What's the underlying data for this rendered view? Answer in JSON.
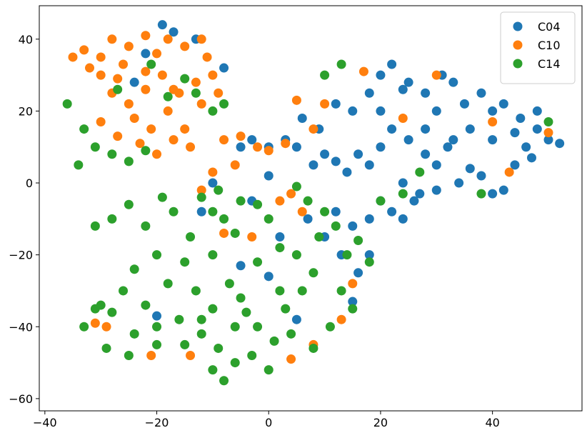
{
  "chart_data": {
    "type": "scatter",
    "xlim": [
      -41,
      56
    ],
    "ylim": [
      -63.4,
      49.3
    ],
    "xticks": [
      {
        "value": -40,
        "label": "−40"
      },
      {
        "value": -20,
        "label": "−20"
      },
      0,
      20,
      40
    ],
    "yticks": [
      {
        "value": -60,
        "label": "−60"
      },
      {
        "value": -40,
        "label": "−40"
      },
      {
        "value": -20,
        "label": "−20"
      },
      0,
      20,
      40
    ],
    "legend": "upper right",
    "series": [
      {
        "name": "C04",
        "color": "#1f77b4",
        "x": [
          20,
          22,
          25,
          18,
          15,
          12,
          28,
          30,
          33,
          35,
          38,
          40,
          42,
          45,
          48,
          50,
          52,
          46,
          44,
          40,
          36,
          32,
          30,
          28,
          25,
          22,
          20,
          18,
          16,
          14,
          12,
          10,
          8,
          5,
          3,
          0,
          -3,
          -5,
          6,
          9,
          24,
          27,
          30,
          34,
          38,
          42,
          40,
          36,
          44,
          47,
          20,
          18,
          15,
          12,
          10,
          13,
          16,
          15,
          18,
          22,
          24,
          26,
          -19,
          -17,
          -13,
          -8,
          -24,
          -22,
          -20,
          -5,
          0,
          5,
          2,
          -3,
          -10,
          -12,
          0,
          31,
          24,
          33,
          20,
          48,
          28,
          7
        ],
        "values": [
          30,
          33,
          28,
          25,
          20,
          22,
          25,
          20,
          28,
          22,
          25,
          20,
          22,
          18,
          15,
          12,
          11,
          10,
          14,
          12,
          15,
          10,
          5,
          8,
          12,
          15,
          10,
          5,
          8,
          3,
          6,
          8,
          5,
          10,
          12,
          10,
          12,
          10,
          18,
          15,
          0,
          -3,
          -2,
          0,
          2,
          -2,
          -3,
          4,
          5,
          7,
          -5,
          -10,
          -12,
          -8,
          -15,
          -20,
          -25,
          -33,
          -20,
          -8,
          -10,
          -5,
          44,
          42,
          40,
          32,
          28,
          36,
          -37,
          -23,
          -26,
          -38,
          -15,
          -5,
          0,
          -8,
          2,
          30,
          26,
          12,
          20,
          20,
          15,
          -10
        ]
      },
      {
        "name": "C10",
        "color": "#ff7f0e",
        "x": [
          -33,
          -30,
          -28,
          -25,
          -22,
          -20,
          -18,
          -15,
          -12,
          -10,
          -13,
          -16,
          -19,
          -22,
          -25,
          -28,
          -30,
          -32,
          -26,
          -24,
          -21,
          -18,
          -15,
          -12,
          -9,
          -14,
          -17,
          -20,
          -23,
          -27,
          -30,
          -8,
          -5,
          -2,
          0,
          3,
          -6,
          -10,
          -12,
          4,
          2,
          6,
          8,
          10,
          5,
          17,
          30,
          40,
          50,
          43,
          24,
          -31,
          -29,
          -21,
          -14,
          -8,
          -3,
          4,
          8,
          13,
          15,
          -17,
          -22,
          -27,
          -11,
          -35
        ],
        "values": [
          37,
          35,
          40,
          38,
          41,
          36,
          40,
          38,
          40,
          30,
          28,
          25,
          30,
          26,
          22,
          25,
          30,
          32,
          33,
          18,
          15,
          20,
          15,
          22,
          25,
          10,
          12,
          8,
          11,
          13,
          17,
          12,
          13,
          10,
          9,
          11,
          5,
          3,
          -2,
          -3,
          -5,
          -8,
          15,
          22,
          23,
          31,
          30,
          17,
          14,
          3,
          18,
          -39,
          -40,
          -48,
          -48,
          -14,
          -15,
          -49,
          -45,
          -38,
          -28,
          26,
          31,
          29,
          35,
          35
        ]
      },
      {
        "name": "C14",
        "color": "#2ca02c",
        "x": [
          -36,
          -33,
          -31,
          -34,
          -28,
          -25,
          -22,
          -27,
          -21,
          -18,
          -15,
          -13,
          -10,
          -8,
          -19,
          -25,
          -28,
          -31,
          -22,
          -17,
          -14,
          -12,
          -8,
          -6,
          -10,
          -15,
          -20,
          -24,
          -26,
          -22,
          -20,
          -24,
          -28,
          -31,
          -33,
          -29,
          -25,
          -20,
          -16,
          -13,
          -10,
          -7,
          -5,
          -12,
          -9,
          -6,
          -3,
          0,
          -8,
          -10,
          -15,
          -2,
          1,
          4,
          3,
          6,
          8,
          5,
          2,
          9,
          12,
          10,
          14,
          16,
          18,
          15,
          11,
          8,
          2,
          -2,
          0,
          -5,
          -10,
          10,
          13,
          20,
          24,
          27,
          38,
          50,
          -9,
          -2,
          5,
          7,
          -4,
          -18,
          -30,
          13,
          -12,
          -6
        ],
        "values": [
          22,
          15,
          10,
          5,
          8,
          6,
          9,
          26,
          33,
          24,
          29,
          25,
          20,
          22,
          -4,
          -6,
          -10,
          -12,
          -12,
          -8,
          -15,
          -4,
          -10,
          -14,
          -20,
          -22,
          -20,
          -24,
          -30,
          -34,
          -40,
          -42,
          -36,
          -35,
          -40,
          -46,
          -48,
          -45,
          -38,
          -30,
          -35,
          -28,
          -32,
          -42,
          -46,
          -50,
          -48,
          -52,
          -55,
          -52,
          -45,
          -40,
          -44,
          -42,
          -35,
          -30,
          -25,
          -20,
          -18,
          -15,
          -12,
          -8,
          -20,
          -16,
          -22,
          -35,
          -40,
          -46,
          -30,
          -22,
          -10,
          -5,
          -8,
          30,
          33,
          -5,
          -3,
          3,
          -3,
          17,
          -2,
          -6,
          -1,
          -5,
          -36,
          -28,
          -34,
          -30,
          -38,
          -40
        ]
      }
    ]
  }
}
